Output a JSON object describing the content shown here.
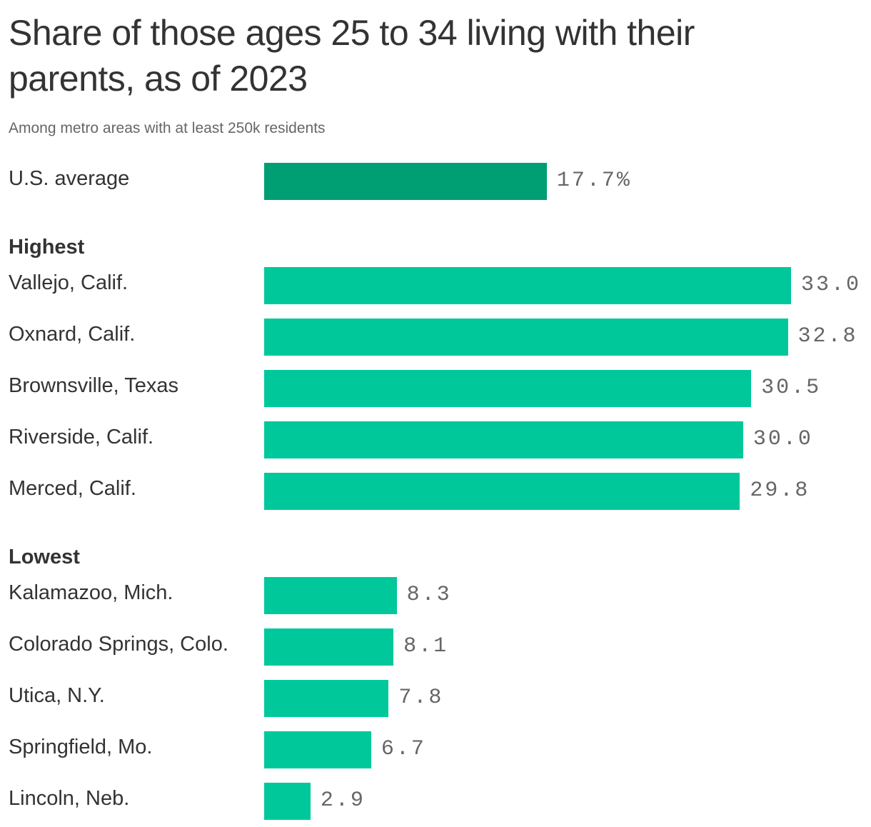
{
  "chart_data": {
    "type": "bar",
    "orientation": "horizontal",
    "title": "Share of those ages 25 to 34 living with their parents, as of 2023",
    "subtitle": "Among metro areas with at least 250k residents",
    "unit": "%",
    "colors": {
      "average": "#009e73",
      "metro": "#00c89a"
    },
    "groups": [
      {
        "label": "",
        "items": [
          {
            "name": "U.S. average",
            "value": 17.7,
            "label": "17.7%"
          }
        ]
      },
      {
        "label": "Highest",
        "items": [
          {
            "name": "Vallejo, Calif.",
            "value": 33.0,
            "label": "33.0"
          },
          {
            "name": "Oxnard, Calif.",
            "value": 32.8,
            "label": "32.8"
          },
          {
            "name": "Brownsville, Texas",
            "value": 30.5,
            "label": "30.5"
          },
          {
            "name": "Riverside, Calif.",
            "value": 30.0,
            "label": "30.0"
          },
          {
            "name": "Merced, Calif.",
            "value": 29.8,
            "label": "29.8"
          }
        ]
      },
      {
        "label": "Lowest",
        "items": [
          {
            "name": "Kalamazoo, Mich.",
            "value": 8.3,
            "label": "8.3"
          },
          {
            "name": "Colorado Springs, Colo.",
            "value": 8.1,
            "label": "8.1"
          },
          {
            "name": "Utica, N.Y.",
            "value": 7.8,
            "label": "7.8"
          },
          {
            "name": "Springfield, Mo.",
            "value": 6.7,
            "label": "6.7"
          },
          {
            "name": "Lincoln, Neb.",
            "value": 2.9,
            "label": "2.9"
          }
        ]
      }
    ]
  }
}
